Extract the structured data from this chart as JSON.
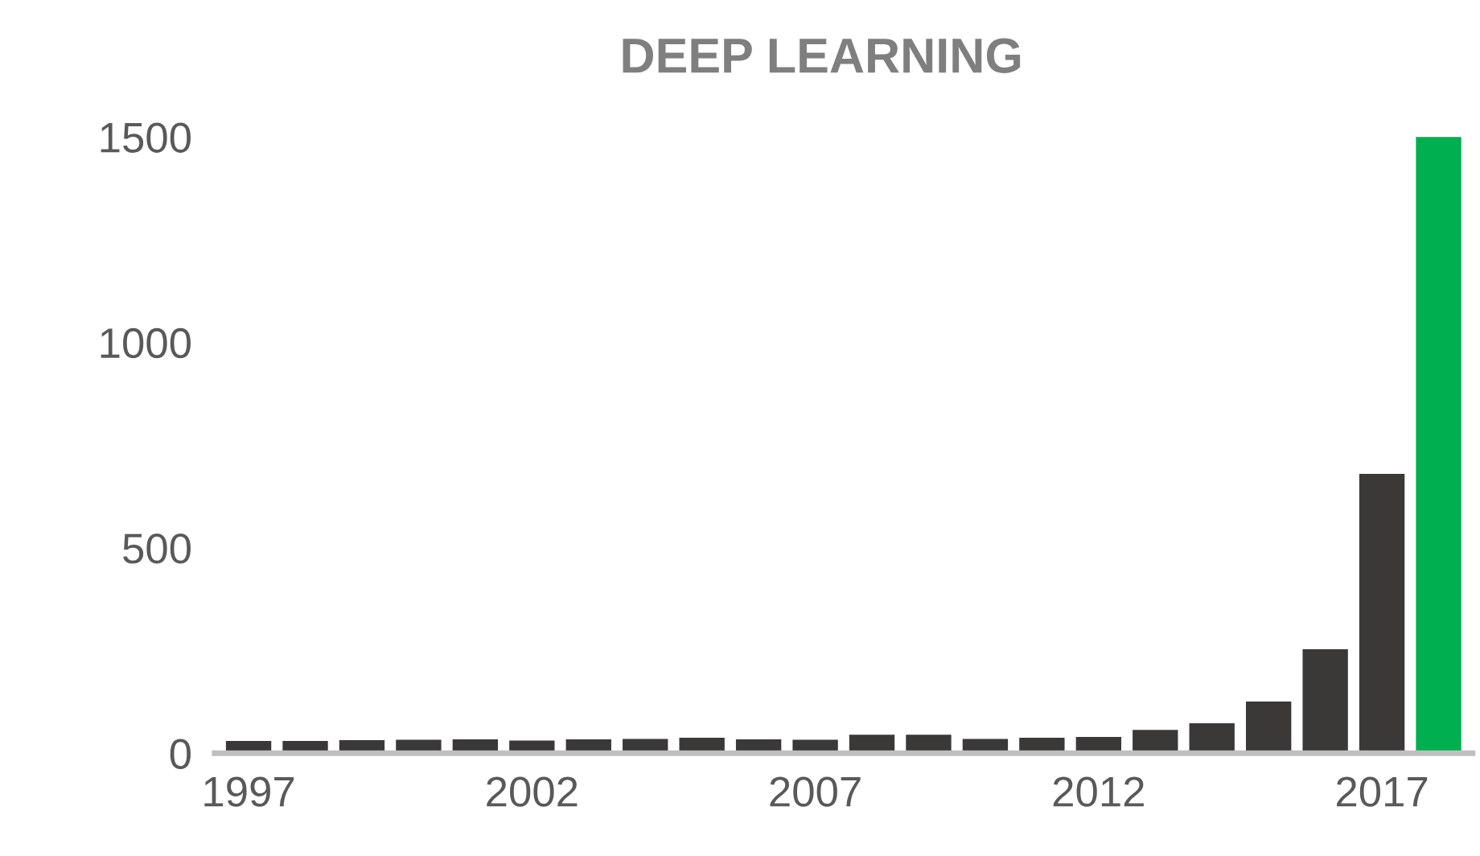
{
  "chart_data": {
    "type": "bar",
    "title": "DEEP LEARNING",
    "categories": [
      "1997",
      null,
      null,
      null,
      null,
      "2002",
      null,
      null,
      null,
      null,
      "2007",
      null,
      null,
      null,
      null,
      "2012",
      null,
      null,
      null,
      null,
      "2017",
      null
    ],
    "values": [
      30,
      30,
      32,
      33,
      34,
      31,
      34,
      35,
      38,
      34,
      33,
      45,
      45,
      35,
      38,
      40,
      57,
      73,
      126,
      253,
      680,
      1500
    ],
    "colors": [
      "#3a3938",
      "#3a3938",
      "#3a3938",
      "#3a3938",
      "#3a3938",
      "#3a3938",
      "#3a3938",
      "#3a3938",
      "#3a3938",
      "#3a3938",
      "#3a3938",
      "#3a3938",
      "#3a3938",
      "#3a3938",
      "#3a3938",
      "#3a3938",
      "#3a3938",
      "#3a3938",
      "#3a3938",
      "#3a3938",
      "#3a3938",
      "#00b050"
    ],
    "ylim": [
      0,
      1500
    ],
    "yticks": [
      0,
      500,
      1000,
      1500
    ],
    "grid": false,
    "legend": false
  }
}
